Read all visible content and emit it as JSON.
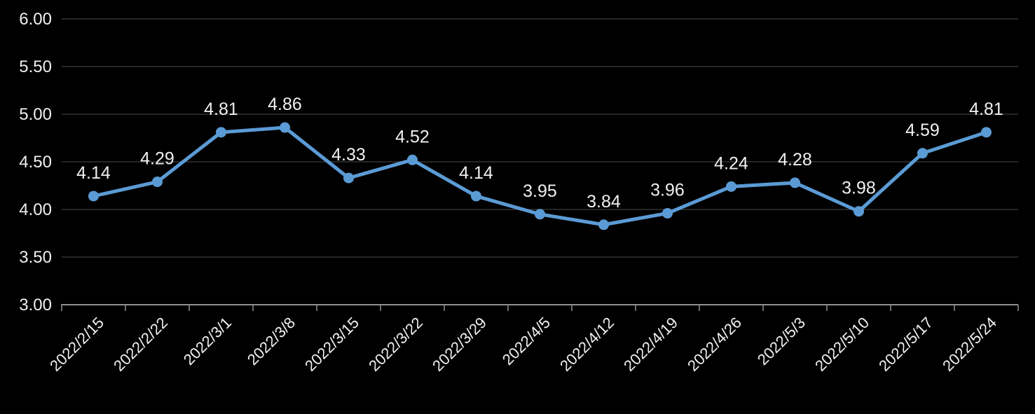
{
  "chart_data": {
    "type": "line",
    "title": "",
    "xlabel": "",
    "ylabel": "",
    "categories": [
      "2022/2/15",
      "2022/2/22",
      "2022/3/1",
      "2022/3/8",
      "2022/3/15",
      "2022/3/22",
      "2022/3/29",
      "2022/4/5",
      "2022/4/12",
      "2022/4/19",
      "2022/4/26",
      "2022/5/3",
      "2022/5/10",
      "2022/5/17",
      "2022/5/24"
    ],
    "values": [
      4.14,
      4.29,
      4.81,
      4.86,
      4.33,
      4.52,
      4.14,
      3.95,
      3.84,
      3.96,
      4.24,
      4.28,
      3.98,
      4.59,
      4.81
    ],
    "data_labels": [
      "4.14",
      "4.29",
      "4.81",
      "4.86",
      "4.33",
      "4.52",
      "4.14",
      "3.95",
      "3.84",
      "3.96",
      "4.24",
      "4.28",
      "3.98",
      "4.59",
      "4.81"
    ],
    "y_ticks": [
      "3.00",
      "3.50",
      "4.00",
      "4.50",
      "5.00",
      "5.50",
      "6.00"
    ],
    "ylim": [
      3.0,
      6.0
    ],
    "grid": true,
    "legend": "none",
    "colors": {
      "background": "#000000",
      "line": "#5b9bd5",
      "marker": "#5b9bd5",
      "gridline": "#3d3d3d",
      "axis": "#8f8f8f",
      "text": "#f0f0f0"
    }
  }
}
